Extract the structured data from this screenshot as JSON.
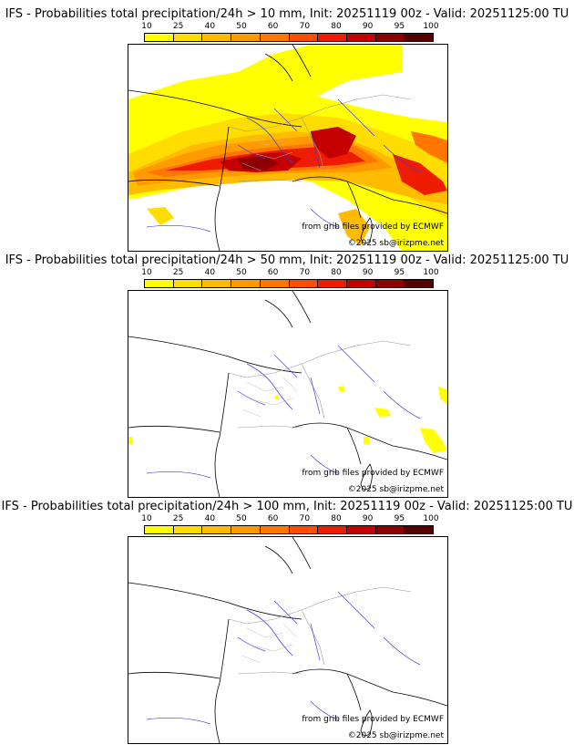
{
  "colorbar": {
    "ticks": [
      "10",
      "25",
      "40",
      "50",
      "60",
      "70",
      "80",
      "90",
      "95",
      "100"
    ],
    "colors": [
      "#ffff00",
      "#ffdd00",
      "#ffbb00",
      "#ff9a00",
      "#ff7700",
      "#ff4d00",
      "#ee1c00",
      "#c40000",
      "#8e0000",
      "#560000"
    ]
  },
  "panels": [
    {
      "title": "IFS - Probabilities total precipitation/24h > 10 mm, Init: 20251119 00z - Valid: 20251125:00 TU",
      "credit_source": "from grib files provided by ECMWF",
      "credit_copyright": "©2025 sb@irizpme.net",
      "threshold_mm": 10
    },
    {
      "title": "IFS - Probabilities total precipitation/24h > 50 mm, Init: 20251119 00z - Valid: 20251125:00 TU",
      "credit_source": "from grib files provided by ECMWF",
      "credit_copyright": "©2025 sb@irizpme.net",
      "threshold_mm": 50
    },
    {
      "title": "IFS - Probabilities total precipitation/24h > 100 mm, Init: 20251119 00z - Valid: 20251125:00 TU",
      "credit_source": "from grib files provided by ECMWF",
      "credit_copyright": "©2025 sb@irizpme.net",
      "threshold_mm": 100
    }
  ],
  "legend_colors": {
    "coast": "#000000",
    "rivers": "#3f3fd9",
    "borders": "#999999"
  }
}
